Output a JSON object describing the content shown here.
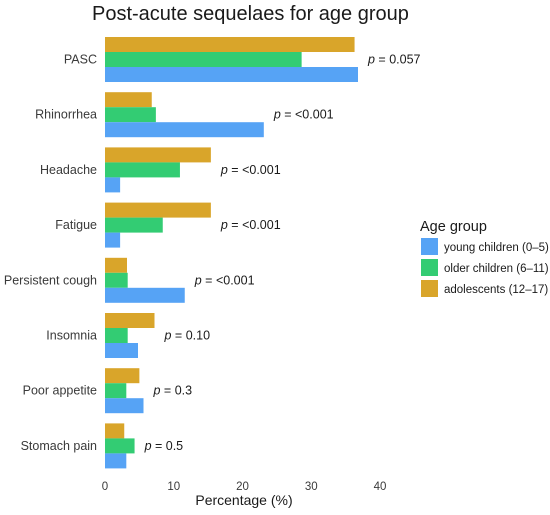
{
  "chart_data": {
    "type": "bar",
    "orientation": "horizontal",
    "title": "Post-acute sequelaes for age group",
    "xlabel": "Percentage (%)",
    "ylabel": "",
    "xlim": [
      0,
      40
    ],
    "xticks": [
      0,
      10,
      20,
      30,
      40
    ],
    "grid": false,
    "legend": {
      "title": "Age group",
      "placement": "right"
    },
    "categories": [
      "PASC",
      "Rhinorrhea",
      "Headache",
      "Fatigue",
      "Persistent cough",
      "Insomnia",
      "Poor appetite",
      "Stomach pain"
    ],
    "series": [
      {
        "name": "young children (0–5)",
        "color": "#56a3f5",
        "values": [
          36.8,
          23.1,
          2.2,
          2.2,
          11.6,
          4.8,
          5.6,
          3.1
        ]
      },
      {
        "name": "older children (6–11)",
        "color": "#33cc73",
        "values": [
          28.6,
          7.4,
          10.9,
          8.4,
          3.3,
          3.3,
          3.1,
          4.3
        ]
      },
      {
        "name": "adolescents (12–17)",
        "color": "#d9a52a",
        "values": [
          36.3,
          6.8,
          15.4,
          15.4,
          3.2,
          7.2,
          5.0,
          2.8
        ]
      }
    ],
    "annotations": [
      {
        "category": "PASC",
        "prefix": "p",
        "text": " = 0.057"
      },
      {
        "category": "Rhinorrhea",
        "prefix": "p",
        "text": " = <0.001"
      },
      {
        "category": "Headache",
        "prefix": "p",
        "text": " = <0.001"
      },
      {
        "category": "Fatigue",
        "prefix": "p",
        "text": " = <0.001"
      },
      {
        "category": "Persistent cough",
        "prefix": "p",
        "text": " = <0.001"
      },
      {
        "category": "Insomnia",
        "prefix": "p",
        "text": " = 0.10"
      },
      {
        "category": "Poor appetite",
        "prefix": "p",
        "text": " = 0.3"
      },
      {
        "category": "Stomach pain",
        "prefix": "p",
        "text": " = 0.5"
      }
    ]
  }
}
